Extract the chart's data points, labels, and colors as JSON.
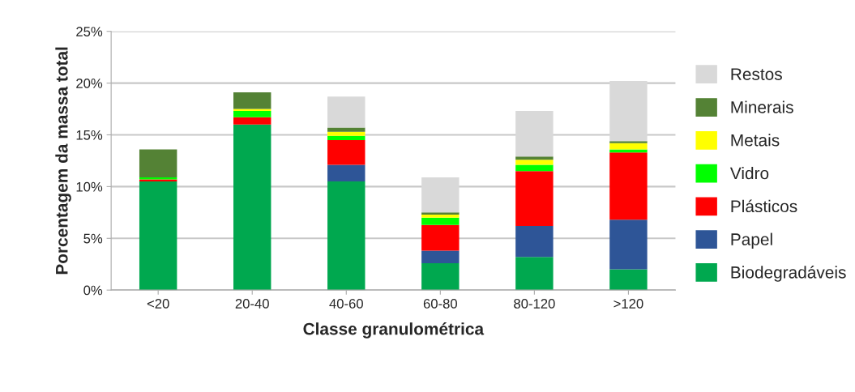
{
  "chart_data": {
    "type": "bar",
    "stacked": true,
    "xlabel": "Classe granulométrica",
    "ylabel": "Porcentagem da massa total",
    "categories": [
      "<20",
      "20-40",
      "40-60",
      "60-80",
      "80-120",
      ">120"
    ],
    "series": [
      {
        "name": "Biodegradáveis",
        "color": "#00a84f",
        "values": [
          10.5,
          16.0,
          10.5,
          2.6,
          3.2,
          2.0
        ]
      },
      {
        "name": "Papel",
        "color": "#2e5597",
        "values": [
          0,
          0,
          1.6,
          1.2,
          3.0,
          4.8
        ]
      },
      {
        "name": "Plásticos",
        "color": "#ff0000",
        "values": [
          0.2,
          0.7,
          2.4,
          2.5,
          5.3,
          6.5
        ]
      },
      {
        "name": "Vidro",
        "color": "#00ff00",
        "values": [
          0.2,
          0.6,
          0.4,
          0.7,
          0.6,
          0.3
        ]
      },
      {
        "name": "Metais",
        "color": "#ffff00",
        "values": [
          null,
          0.2,
          0.4,
          0.3,
          0.5,
          0.6
        ]
      },
      {
        "name": "Minerais",
        "color": "#548235",
        "values": [
          2.7,
          1.6,
          0.4,
          0.2,
          0.3,
          0.2
        ]
      },
      {
        "name": "Restos",
        "color": "#d9d9d9",
        "values": [
          null,
          null,
          3.0,
          3.4,
          4.4,
          5.8
        ]
      }
    ],
    "ylim": [
      0,
      25
    ],
    "yticks": [
      {
        "value": 0,
        "label": "0%"
      },
      {
        "value": 5,
        "label": "5%"
      },
      {
        "value": 10,
        "label": "10%"
      },
      {
        "value": 15,
        "label": "15%"
      },
      {
        "value": 20,
        "label": "20%"
      },
      {
        "value": 25,
        "label": "25%"
      }
    ],
    "grid": "y",
    "legend": "right"
  }
}
